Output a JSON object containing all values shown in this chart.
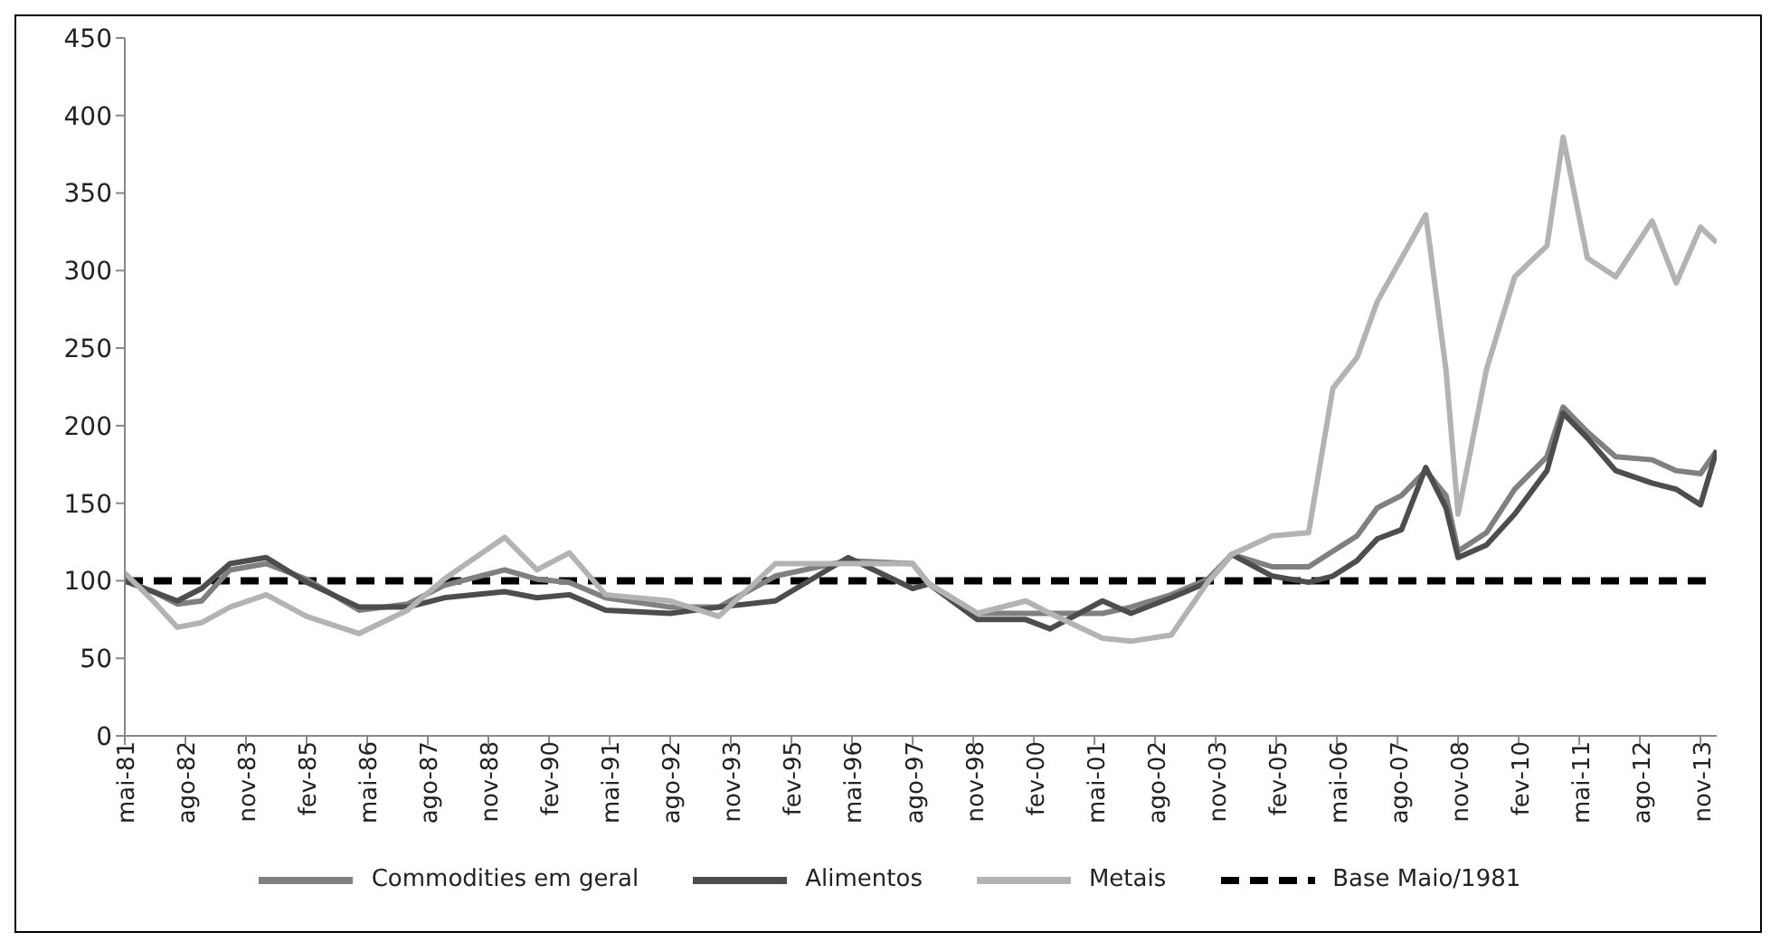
{
  "chart_data": {
    "type": "line",
    "x": [
      "1981-05",
      "1981-12",
      "1982-06",
      "1982-12",
      "1983-07",
      "1984-04",
      "1985-02",
      "1986-03",
      "1987-03",
      "1987-12",
      "1989-03",
      "1989-11",
      "1990-07",
      "1991-04",
      "1992-08",
      "1993-08",
      "1994-10",
      "1996-04",
      "1997-08",
      "1997-12",
      "1998-12",
      "1999-12",
      "2000-06",
      "2001-07",
      "2002-02",
      "2002-12",
      "2003-09",
      "2004-03",
      "2005-01",
      "2005-10",
      "2006-04",
      "2006-10",
      "2007-03",
      "2007-09",
      "2008-03",
      "2008-08",
      "2008-11",
      "2009-06",
      "2010-01",
      "2010-09",
      "2011-01",
      "2011-07",
      "2012-02",
      "2012-11",
      "2013-05",
      "2013-11",
      "2014-03"
    ],
    "series": [
      {
        "name": "Commodities em geral",
        "color": "#808080",
        "values": [
          100,
          93,
          85,
          87,
          107,
          111,
          101,
          81,
          85,
          97,
          107,
          101,
          99,
          89,
          83,
          83,
          103,
          113,
          111,
          98,
          79,
          79,
          79,
          79,
          83,
          91,
          101,
          117,
          109,
          109,
          119,
          129,
          147,
          155,
          171,
          155,
          119,
          131,
          159,
          180,
          212,
          196,
          180,
          178,
          171,
          169,
          184
        ]
      },
      {
        "name": "Alimentos",
        "color": "#4d4d4d",
        "values": [
          100,
          93,
          87,
          95,
          111,
          115,
          99,
          83,
          83,
          89,
          93,
          89,
          91,
          81,
          79,
          83,
          87,
          115,
          95,
          98,
          75,
          75,
          69,
          87,
          79,
          89,
          99,
          117,
          103,
          99,
          103,
          113,
          127,
          133,
          173,
          147,
          115,
          123,
          143,
          171,
          208,
          192,
          171,
          163,
          159,
          149,
          184
        ]
      },
      {
        "name": "Metais",
        "color": "#b3b3b3",
        "values": [
          105,
          87,
          70,
          73,
          83,
          91,
          77,
          66,
          81,
          101,
          128,
          107,
          118,
          91,
          87,
          77,
          111,
          111,
          111,
          98,
          79,
          87,
          79,
          63,
          61,
          65,
          99,
          117,
          129,
          131,
          224,
          244,
          280,
          308,
          336,
          236,
          143,
          236,
          296,
          316,
          386,
          308,
          296,
          332,
          292,
          328,
          318
        ]
      }
    ],
    "ref_lines": [
      {
        "axis": "y",
        "value": 100,
        "label": "Base Maio/1981",
        "color": "#000000",
        "line_style": "dashed"
      }
    ],
    "xlim": [
      "1981-05",
      "2014-03"
    ],
    "xticks": [
      {
        "value": "1981-05",
        "label": "mai-81"
      },
      {
        "value": "1982-08",
        "label": "ago-82"
      },
      {
        "value": "1983-11",
        "label": "nov-83"
      },
      {
        "value": "1985-02",
        "label": "fev-85"
      },
      {
        "value": "1986-05",
        "label": "mai-86"
      },
      {
        "value": "1987-08",
        "label": "ago-87"
      },
      {
        "value": "1988-11",
        "label": "nov-88"
      },
      {
        "value": "1990-02",
        "label": "fev-90"
      },
      {
        "value": "1991-05",
        "label": "mai-91"
      },
      {
        "value": "1992-08",
        "label": "ago-92"
      },
      {
        "value": "1993-11",
        "label": "nov-93"
      },
      {
        "value": "1995-02",
        "label": "fev-95"
      },
      {
        "value": "1996-05",
        "label": "mai-96"
      },
      {
        "value": "1997-08",
        "label": "ago-97"
      },
      {
        "value": "1998-11",
        "label": "nov-98"
      },
      {
        "value": "2000-02",
        "label": "fev-00"
      },
      {
        "value": "2001-05",
        "label": "mai-01"
      },
      {
        "value": "2002-08",
        "label": "ago-02"
      },
      {
        "value": "2003-11",
        "label": "nov-03"
      },
      {
        "value": "2005-02",
        "label": "fev-05"
      },
      {
        "value": "2006-05",
        "label": "mai-06"
      },
      {
        "value": "2007-08",
        "label": "ago-07"
      },
      {
        "value": "2008-11",
        "label": "nov-08"
      },
      {
        "value": "2010-02",
        "label": "fev-10"
      },
      {
        "value": "2011-05",
        "label": "mai-11"
      },
      {
        "value": "2012-08",
        "label": "ago-12"
      },
      {
        "value": "2013-11",
        "label": "nov-13"
      }
    ],
    "ylim": [
      0,
      450
    ],
    "yticks": [
      0,
      50,
      100,
      150,
      200,
      250,
      300,
      350,
      400,
      450
    ],
    "grid": false,
    "legend": "bottom",
    "marker": "none",
    "line_style": "solid"
  }
}
